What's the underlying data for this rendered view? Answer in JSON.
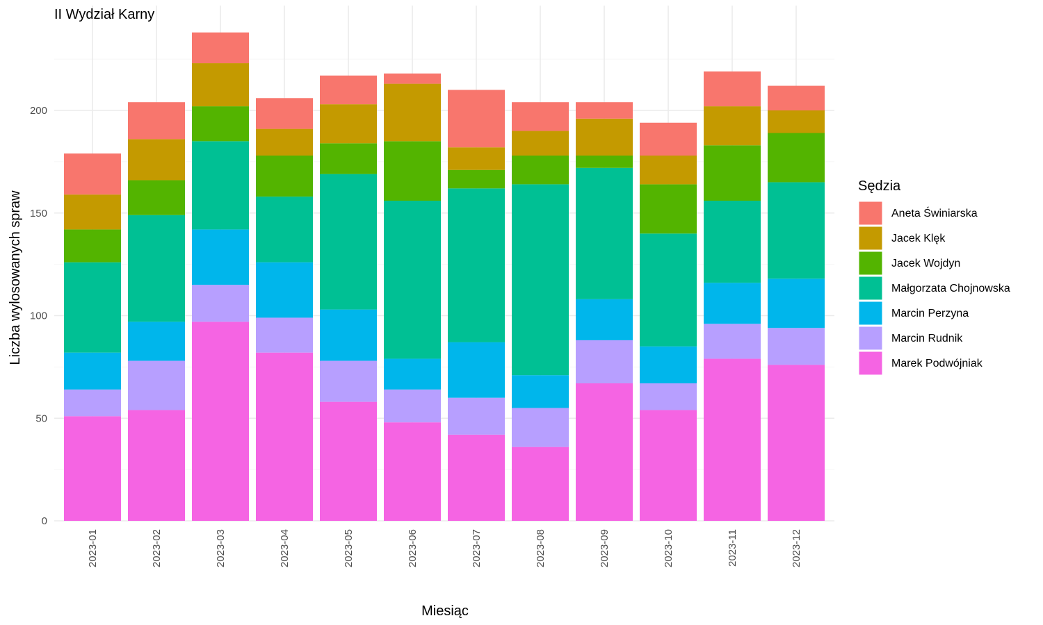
{
  "chart_data": {
    "type": "bar",
    "stacked": true,
    "title": "II Wydział Karny",
    "xlabel": "Miesiąc",
    "ylabel": "Liczba wylosowanych spraw",
    "ylim": [
      0,
      240
    ],
    "yticks": [
      0,
      50,
      100,
      150,
      200
    ],
    "grid": true,
    "legend_title": "Sędzia",
    "legend_position": "right",
    "categories": [
      "2023-01",
      "2023-02",
      "2023-03",
      "2023-04",
      "2023-05",
      "2023-06",
      "2023-07",
      "2023-08",
      "2023-09",
      "2023-10",
      "2023-11",
      "2023-12"
    ],
    "series": [
      {
        "name": "Marek Podwójniak",
        "color": "#F564E3",
        "values": [
          51,
          54,
          97,
          82,
          58,
          48,
          42,
          36,
          67,
          54,
          79,
          76
        ]
      },
      {
        "name": "Marcin Rudnik",
        "color": "#B79FFF",
        "values": [
          13,
          24,
          18,
          17,
          20,
          16,
          18,
          19,
          21,
          13,
          17,
          18
        ]
      },
      {
        "name": "Marcin Perzyna",
        "color": "#00B6EB",
        "values": [
          18,
          19,
          27,
          27,
          25,
          15,
          27,
          16,
          20,
          18,
          20,
          24
        ]
      },
      {
        "name": "Małgorzata Chojnowska",
        "color": "#00C094",
        "values": [
          44,
          52,
          43,
          32,
          66,
          77,
          75,
          93,
          64,
          55,
          40,
          47
        ]
      },
      {
        "name": "Jacek Wojdyn",
        "color": "#53B400",
        "values": [
          16,
          17,
          17,
          20,
          15,
          29,
          9,
          14,
          6,
          24,
          27,
          24
        ]
      },
      {
        "name": "Jacek Klęk",
        "color": "#C49A00",
        "values": [
          17,
          20,
          21,
          13,
          19,
          28,
          11,
          12,
          18,
          14,
          19,
          11
        ]
      },
      {
        "name": "Aneta Świniarska",
        "color": "#F8766D",
        "values": [
          20,
          18,
          15,
          15,
          14,
          5,
          28,
          14,
          8,
          16,
          17,
          12
        ]
      }
    ]
  }
}
